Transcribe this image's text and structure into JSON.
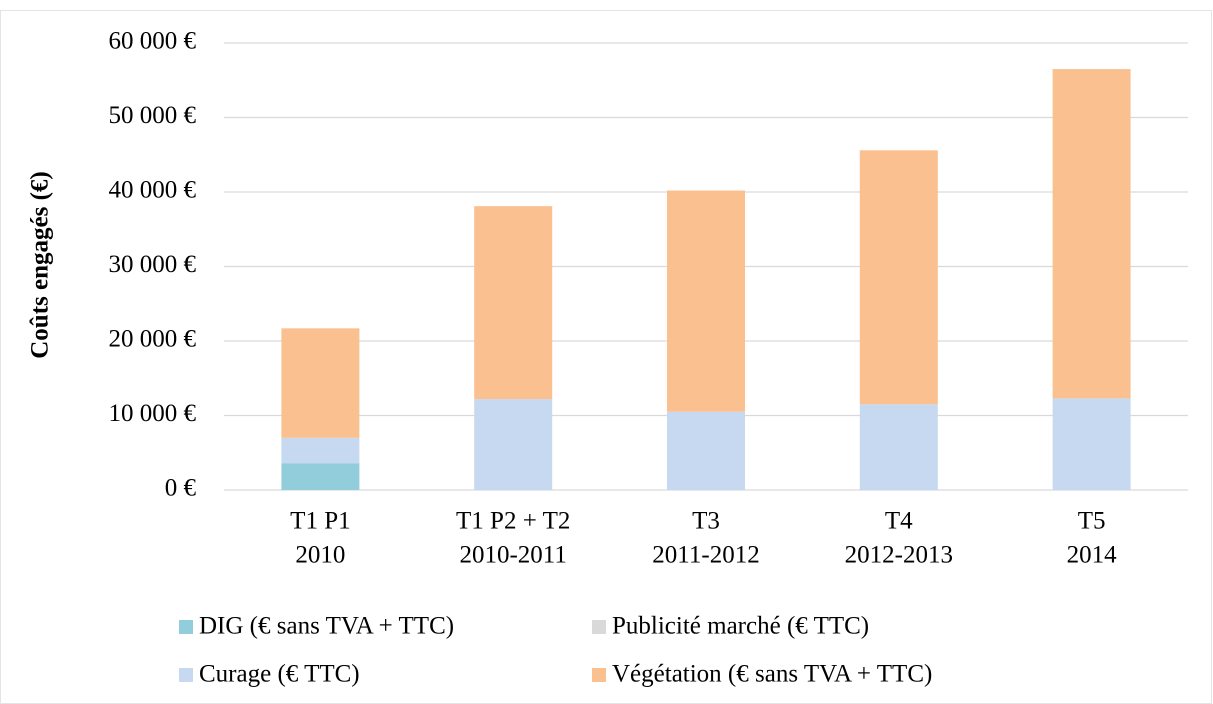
{
  "chart_data": {
    "type": "stacked-bar",
    "y_label": "Coûts engagés (€)",
    "categories": [
      [
        "T1 P1",
        "2010"
      ],
      [
        "T1 P2 + T2",
        "2010-2011"
      ],
      [
        "T3",
        "2011-2012"
      ],
      [
        "T4",
        "2012-2013"
      ],
      [
        "T5",
        "2014"
      ]
    ],
    "series": [
      {
        "name": "DIG (€ sans TVA + TTC)",
        "color": "#92cddc",
        "values": [
          3600,
          0,
          0,
          0,
          0
        ]
      },
      {
        "name": "Publicité marché (€ TTC)",
        "color": "#d9d9d9",
        "values": [
          0,
          0,
          0,
          0,
          0
        ]
      },
      {
        "name": "Curage (€ TTC)",
        "color": "#c6d9f1",
        "values": [
          3400,
          12200,
          10500,
          11500,
          12300
        ]
      },
      {
        "name": "Végétation (€ sans TVA + TTC)",
        "color": "#fac090",
        "values": [
          14700,
          25900,
          29700,
          34100,
          44200
        ]
      }
    ],
    "ylim": [
      0,
      60000
    ],
    "yticks": [
      {
        "value": 0,
        "label": "0 €"
      },
      {
        "value": 10000,
        "label": "10 000 €"
      },
      {
        "value": 20000,
        "label": "20 000 €"
      },
      {
        "value": 30000,
        "label": "30 000 €"
      },
      {
        "value": 40000,
        "label": "40 000 €"
      },
      {
        "value": 50000,
        "label": "50 000 €"
      },
      {
        "value": 60000,
        "label": "60 000 €"
      }
    ],
    "grid": true,
    "legend": "bottom"
  }
}
